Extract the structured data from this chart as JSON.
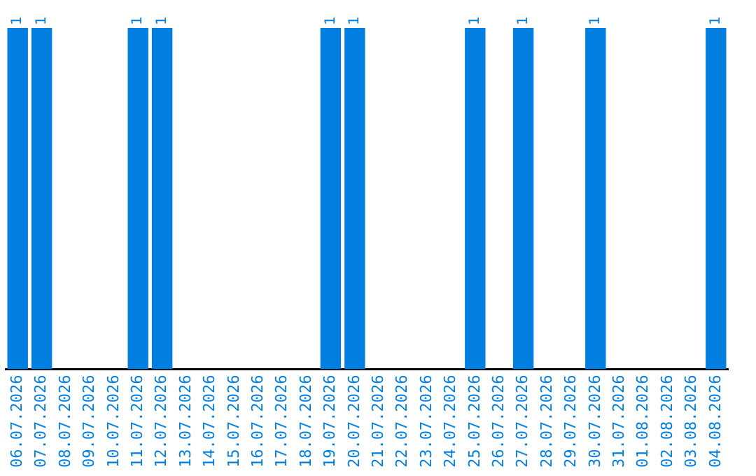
{
  "chart_data": {
    "type": "bar",
    "categories": [
      "06.07.2026",
      "07.07.2026",
      "08.07.2026",
      "09.07.2026",
      "10.07.2026",
      "11.07.2026",
      "12.07.2026",
      "13.07.2026",
      "14.07.2026",
      "15.07.2026",
      "16.07.2026",
      "17.07.2026",
      "18.07.2026",
      "19.07.2026",
      "20.07.2026",
      "21.07.2026",
      "22.07.2026",
      "23.07.2026",
      "24.07.2026",
      "25.07.2026",
      "26.07.2026",
      "27.07.2026",
      "28.07.2026",
      "29.07.2026",
      "30.07.2026",
      "31.07.2026",
      "01.08.2026",
      "02.08.2026",
      "03.08.2026",
      "04.08.2026"
    ],
    "values": [
      1,
      1,
      0,
      0,
      0,
      1,
      1,
      0,
      0,
      0,
      0,
      0,
      0,
      1,
      1,
      0,
      0,
      0,
      0,
      1,
      0,
      1,
      0,
      0,
      1,
      0,
      0,
      0,
      0,
      1
    ],
    "value_labels": [
      "1",
      "1",
      null,
      null,
      null,
      "1",
      "1",
      null,
      null,
      null,
      null,
      null,
      null,
      "1",
      "1",
      null,
      null,
      null,
      null,
      "1",
      null,
      "1",
      null,
      null,
      "1",
      null,
      null,
      null,
      null,
      "1"
    ],
    "color": "#007fe0",
    "tick_labels": "x",
    "grid": false,
    "legend": false
  }
}
